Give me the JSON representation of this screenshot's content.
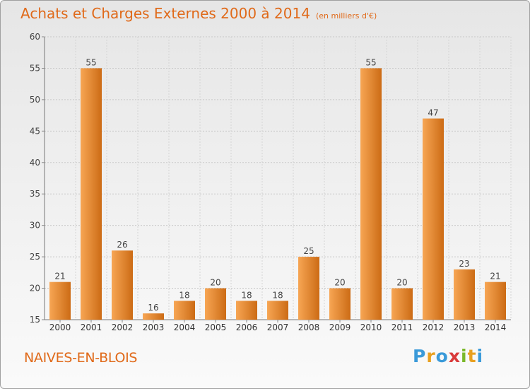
{
  "title": "Achats et Charges Externes 2000 à 2014",
  "unit": "(en milliers d'€)",
  "commune": "NAIVES-EN-BLOIS",
  "logo": {
    "letters": [
      "P",
      "r",
      "o",
      "x",
      "i",
      "t",
      "i"
    ],
    "colors": [
      "#3a9ad9",
      "#e8a020",
      "#3a9ad9",
      "#d93a3a",
      "#7ab82a",
      "#e8a020",
      "#3a9ad9"
    ]
  },
  "colors": {
    "bar_light": "#f7a654",
    "bar_dark": "#cc6b15",
    "text_accent": "#e06a1a"
  },
  "chart_data": {
    "type": "bar",
    "categories": [
      "2000",
      "2001",
      "2002",
      "2003",
      "2004",
      "2005",
      "2006",
      "2007",
      "2008",
      "2009",
      "2010",
      "2011",
      "2012",
      "2013",
      "2014"
    ],
    "values": [
      21,
      55,
      26,
      16,
      18,
      20,
      18,
      18,
      25,
      20,
      55,
      20,
      47,
      23,
      21
    ],
    "ylim": [
      15,
      60
    ],
    "yticks": [
      15,
      20,
      25,
      30,
      35,
      40,
      45,
      50,
      55,
      60
    ],
    "grid": true,
    "title": "Achats et Charges Externes 2000 à 2014",
    "xlabel": "",
    "ylabel": ""
  }
}
